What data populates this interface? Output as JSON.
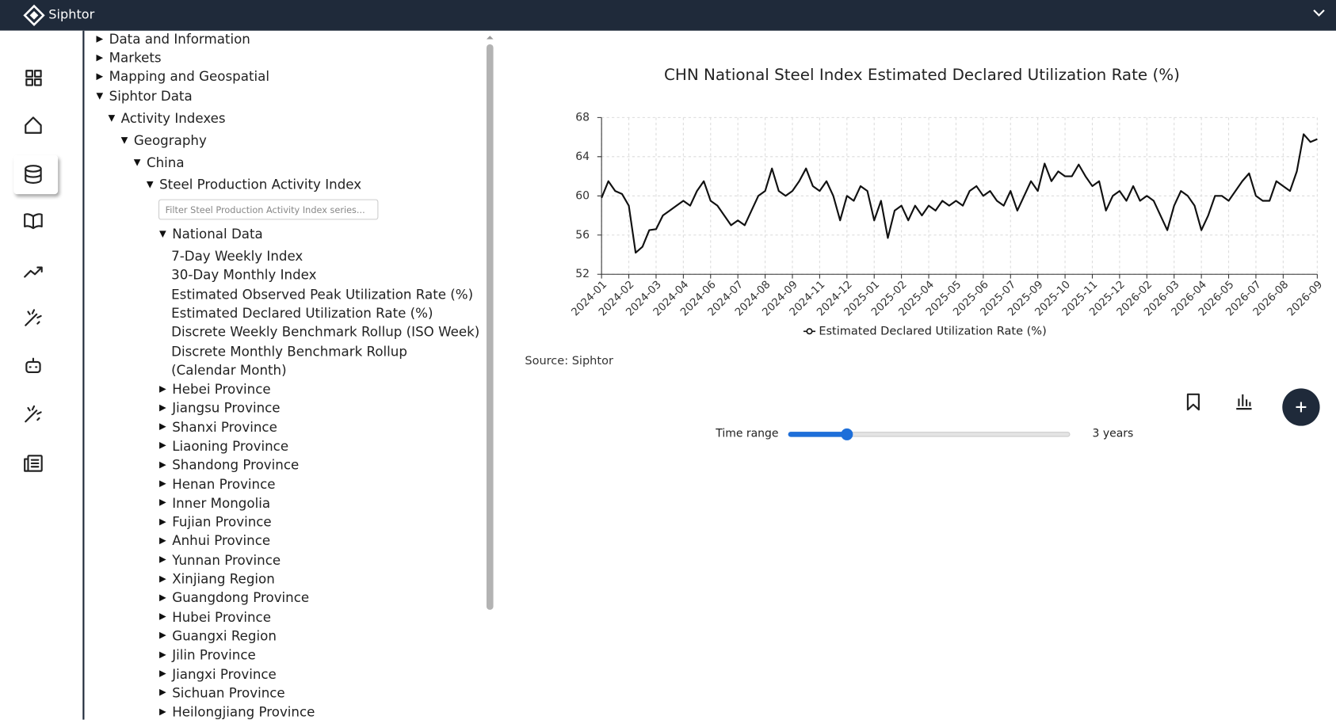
{
  "header": {
    "brand": "Siphtor"
  },
  "tree": {
    "items": [
      "Data and Information",
      "Markets",
      "Mapping and Geospatial",
      "Siphtor Data",
      "Activity Indexes",
      "Geography",
      "China",
      "Steel Production Activity Index"
    ],
    "filter_placeholder": "Filter Steel Production Activity Index series...",
    "group": "National Data",
    "series": [
      "7-Day Weekly Index",
      "30-Day Monthly Index",
      "Estimated Observed Peak Utilization Rate (%)",
      "Estimated Declared Utilization Rate (%)",
      "Discrete Weekly Benchmark Rollup (ISO Week)",
      "Discrete Monthly Benchmark Rollup (Calendar Month)"
    ],
    "regions": [
      "Hebei Province",
      "Jiangsu Province",
      "Shanxi Province",
      "Liaoning Province",
      "Shandong Province",
      "Henan Province",
      "Inner Mongolia",
      "Fujian Province",
      "Anhui Province",
      "Yunnan Province",
      "Xinjiang Region",
      "Guangdong Province",
      "Hubei Province",
      "Guangxi Region",
      "Jilin Province",
      "Jiangxi Province",
      "Sichuan Province",
      "Heilongjiang Province"
    ]
  },
  "source": "Source: Siphtor",
  "controls": {
    "time_range_label": "Time range",
    "time_range_value": "3 years"
  },
  "chart_data": {
    "type": "line",
    "title": "CHN National Steel Index Estimated Declared Utilization Rate (%)",
    "categories": [
      "2024-01",
      null,
      null,
      null,
      "2024-02",
      null,
      null,
      null,
      "2024-03",
      null,
      null,
      null,
      "2024-04",
      null,
      null,
      null,
      "2024-06",
      null,
      null,
      null,
      "2024-07",
      null,
      null,
      null,
      "2024-08",
      null,
      null,
      null,
      "2024-09",
      null,
      null,
      null,
      "2024-11",
      null,
      null,
      null,
      "2024-12",
      null,
      null,
      null,
      "2025-01",
      null,
      null,
      null,
      "2025-02",
      null,
      null,
      null,
      "2025-04",
      null,
      null,
      null,
      "2025-05",
      null,
      null,
      null,
      "2025-06",
      null,
      null,
      null,
      "2025-07",
      null,
      null,
      null,
      "2025-09",
      null,
      null,
      null,
      "2025-10",
      null,
      null,
      null,
      "2025-11",
      null,
      null,
      null,
      "2025-12",
      null,
      null,
      null,
      "2026-02",
      null,
      null,
      null,
      "2026-03",
      null,
      null,
      null,
      "2026-04",
      null,
      null,
      null,
      "2026-05",
      null,
      null,
      null,
      "2026-07",
      null,
      null,
      null,
      "2026-08",
      null,
      null,
      null,
      null,
      "2026-09"
    ],
    "series": [
      {
        "name": "Estimated Declared Utilization Rate (%)",
        "color": "#111111",
        "values": [
          59.8,
          61.5,
          60.5,
          60.2,
          59,
          54.2,
          54.8,
          56.5,
          56.6,
          58,
          58.5,
          59,
          59.5,
          59,
          60.5,
          61.5,
          59.5,
          59,
          58,
          57,
          57.5,
          57,
          58.5,
          60,
          60.5,
          62.8,
          60.5,
          60,
          60.5,
          61.5,
          62.8,
          61,
          60.5,
          61.5,
          60,
          57.5,
          60,
          59.5,
          61,
          60.5,
          57.5,
          59.5,
          55.7,
          58.5,
          59,
          57.5,
          59,
          58,
          59,
          58.5,
          59.5,
          59,
          59.5,
          59,
          60.5,
          61,
          60,
          60.5,
          59.5,
          59,
          60.5,
          58.5,
          60,
          61.5,
          60.5,
          63.3,
          61.5,
          62.5,
          62,
          62,
          63.2,
          62,
          61,
          61.5,
          58.5,
          60,
          60.5,
          59.5,
          61,
          59.5,
          60,
          59.5,
          58,
          56.5,
          59,
          60.5,
          60,
          59,
          56.5,
          58,
          60,
          60,
          59.5,
          60.5,
          61.5,
          62.3,
          60,
          59.5,
          59.5,
          61.5,
          61,
          60.5,
          62.5,
          66.3,
          65.5,
          65.8
        ]
      }
    ],
    "ylim": [
      52,
      68
    ],
    "yticks": [
      52,
      56,
      60,
      64,
      68
    ],
    "grid": true,
    "legend": "bottom"
  }
}
